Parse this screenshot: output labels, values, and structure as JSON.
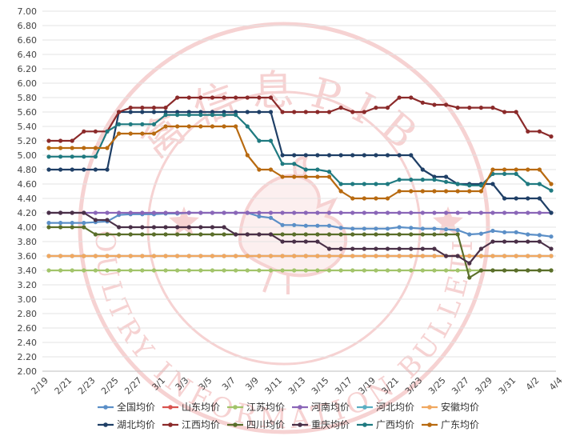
{
  "chart_data": {
    "type": "line",
    "title": "",
    "xlabel": "",
    "ylabel": "",
    "ylim": [
      2.0,
      7.0
    ],
    "y_tick_step": 0.2,
    "grid": true,
    "legend_position": "bottom",
    "x_tick_labels": [
      "2/19",
      "2/21",
      "2/23",
      "2/25",
      "2/27",
      "3/1",
      "3/3",
      "3/5",
      "3/7",
      "3/9",
      "3/11",
      "3/13",
      "3/15",
      "3/17",
      "3/19",
      "3/21",
      "3/23",
      "3/25",
      "3/27",
      "3/29",
      "3/31",
      "4/2",
      "4/4"
    ],
    "x": [
      "2/19",
      "2/20",
      "2/21",
      "2/22",
      "2/23",
      "2/24",
      "2/25",
      "2/26",
      "2/27",
      "2/28",
      "3/1",
      "3/2",
      "3/3",
      "3/4",
      "3/5",
      "3/6",
      "3/7",
      "3/8",
      "3/9",
      "3/10",
      "3/11",
      "3/12",
      "3/13",
      "3/14",
      "3/15",
      "3/16",
      "3/17",
      "3/18",
      "3/19",
      "3/20",
      "3/21",
      "3/22",
      "3/23",
      "3/24",
      "3/25",
      "3/26",
      "3/27",
      "3/28",
      "3/29",
      "3/30",
      "3/31",
      "4/1",
      "4/2",
      "4/3"
    ],
    "series": [
      {
        "name": "全国均价",
        "color": "#5b8fc7",
        "values": [
          4.06,
          4.06,
          4.06,
          4.06,
          4.07,
          4.08,
          4.17,
          4.18,
          4.18,
          4.18,
          4.19,
          4.19,
          4.2,
          4.2,
          4.2,
          4.2,
          4.2,
          4.2,
          4.15,
          4.13,
          4.03,
          4.03,
          4.02,
          4.02,
          4.02,
          3.99,
          3.98,
          3.98,
          3.98,
          3.98,
          4.0,
          3.99,
          3.98,
          3.98,
          3.97,
          3.96,
          3.9,
          3.91,
          3.95,
          3.93,
          3.93,
          3.9,
          3.89,
          3.87
        ]
      },
      {
        "name": "山东均价",
        "color": "#d9534f",
        "values": [
          3.6,
          3.6,
          3.6,
          3.6,
          3.6,
          3.6,
          3.6,
          3.6,
          3.6,
          3.6,
          3.6,
          3.6,
          3.6,
          3.6,
          3.6,
          3.6,
          3.6,
          3.6,
          3.6,
          3.6,
          3.6,
          3.6,
          3.6,
          3.6,
          3.6,
          3.6,
          3.6,
          3.6,
          3.6,
          3.6,
          3.6,
          3.6,
          3.6,
          3.6,
          3.6,
          3.6,
          3.6,
          3.6,
          3.6,
          3.6,
          3.6,
          3.6,
          3.6,
          3.6
        ]
      },
      {
        "name": "江苏均价",
        "color": "#a2c46a",
        "values": [
          3.4,
          3.4,
          3.4,
          3.4,
          3.4,
          3.4,
          3.4,
          3.4,
          3.4,
          3.4,
          3.4,
          3.4,
          3.4,
          3.4,
          3.4,
          3.4,
          3.4,
          3.4,
          3.4,
          3.4,
          3.4,
          3.4,
          3.4,
          3.4,
          3.4,
          3.4,
          3.4,
          3.4,
          3.4,
          3.4,
          3.4,
          3.4,
          3.4,
          3.4,
          3.4,
          3.4,
          3.4,
          3.4,
          3.4,
          3.4,
          3.4,
          3.4,
          3.4,
          3.4
        ]
      },
      {
        "name": "河南均价",
        "color": "#8a66b8",
        "values": [
          4.2,
          4.2,
          4.2,
          4.2,
          4.2,
          4.2,
          4.2,
          4.2,
          4.2,
          4.2,
          4.2,
          4.2,
          4.2,
          4.2,
          4.2,
          4.2,
          4.2,
          4.2,
          4.2,
          4.2,
          4.2,
          4.2,
          4.2,
          4.2,
          4.2,
          4.2,
          4.2,
          4.2,
          4.2,
          4.2,
          4.2,
          4.2,
          4.2,
          4.2,
          4.2,
          4.2,
          4.2,
          4.2,
          4.2,
          4.2,
          4.2,
          4.2,
          4.2,
          4.2
        ]
      },
      {
        "name": "河北均价",
        "color": "#5aaec2",
        "values": [
          3.6,
          3.6,
          3.6,
          3.6,
          3.6,
          3.6,
          3.6,
          3.6,
          3.6,
          3.6,
          3.6,
          3.6,
          3.6,
          3.6,
          3.6,
          3.6,
          3.6,
          3.6,
          3.6,
          3.6,
          3.6,
          3.6,
          3.6,
          3.6,
          3.6,
          3.6,
          3.6,
          3.6,
          3.6,
          3.6,
          3.6,
          3.6,
          3.6,
          3.6,
          3.6,
          3.6,
          3.6,
          3.6,
          3.6,
          3.6,
          3.6,
          3.6,
          3.6,
          3.6
        ]
      },
      {
        "name": "安徽均价",
        "color": "#f0a860",
        "values": [
          3.6,
          3.6,
          3.6,
          3.6,
          3.6,
          3.6,
          3.6,
          3.6,
          3.6,
          3.6,
          3.6,
          3.6,
          3.6,
          3.6,
          3.6,
          3.6,
          3.6,
          3.6,
          3.6,
          3.6,
          3.6,
          3.6,
          3.6,
          3.6,
          3.6,
          3.6,
          3.6,
          3.6,
          3.6,
          3.6,
          3.6,
          3.6,
          3.6,
          3.6,
          3.6,
          3.6,
          3.6,
          3.6,
          3.6,
          3.6,
          3.6,
          3.6,
          3.6,
          3.6
        ]
      },
      {
        "name": "湖北均价",
        "color": "#1f3f66",
        "values": [
          4.8,
          4.8,
          4.8,
          4.8,
          4.8,
          4.8,
          5.6,
          5.6,
          5.6,
          5.6,
          5.6,
          5.6,
          5.6,
          5.6,
          5.6,
          5.6,
          5.6,
          5.6,
          5.6,
          5.6,
          5.0,
          5.0,
          5.0,
          5.0,
          5.0,
          5.0,
          5.0,
          5.0,
          5.0,
          5.0,
          5.0,
          5.0,
          4.8,
          4.7,
          4.7,
          4.6,
          4.6,
          4.6,
          4.6,
          4.4,
          4.4,
          4.4,
          4.4,
          4.2
        ]
      },
      {
        "name": "江西均价",
        "color": "#8b2a2a",
        "values": [
          5.2,
          5.2,
          5.2,
          5.33,
          5.33,
          5.33,
          5.6,
          5.66,
          5.66,
          5.66,
          5.66,
          5.8,
          5.8,
          5.8,
          5.8,
          5.8,
          5.8,
          5.8,
          5.8,
          5.8,
          5.6,
          5.6,
          5.6,
          5.6,
          5.6,
          5.66,
          5.6,
          5.6,
          5.66,
          5.66,
          5.8,
          5.8,
          5.73,
          5.7,
          5.7,
          5.66,
          5.66,
          5.66,
          5.66,
          5.6,
          5.6,
          5.33,
          5.33,
          5.26
        ]
      },
      {
        "name": "四川均价",
        "color": "#5a6e2a",
        "values": [
          4.0,
          4.0,
          4.0,
          4.0,
          3.9,
          3.9,
          3.9,
          3.9,
          3.9,
          3.9,
          3.9,
          3.9,
          3.9,
          3.9,
          3.9,
          3.9,
          3.9,
          3.9,
          3.9,
          3.9,
          3.9,
          3.9,
          3.9,
          3.9,
          3.9,
          3.9,
          3.9,
          3.9,
          3.9,
          3.9,
          3.9,
          3.9,
          3.9,
          3.9,
          3.9,
          3.9,
          3.3,
          3.4,
          3.4,
          3.4,
          3.4,
          3.4,
          3.4,
          3.4
        ]
      },
      {
        "name": "重庆均价",
        "color": "#4a3048",
        "values": [
          4.2,
          4.2,
          4.2,
          4.2,
          4.1,
          4.1,
          4.0,
          4.0,
          4.0,
          4.0,
          4.0,
          4.0,
          4.0,
          4.0,
          4.0,
          4.0,
          3.9,
          3.9,
          3.9,
          3.9,
          3.8,
          3.8,
          3.8,
          3.8,
          3.7,
          3.7,
          3.7,
          3.7,
          3.7,
          3.7,
          3.7,
          3.7,
          3.7,
          3.7,
          3.6,
          3.6,
          3.5,
          3.7,
          3.8,
          3.8,
          3.8,
          3.8,
          3.8,
          3.7
        ]
      },
      {
        "name": "广西均价",
        "color": "#1f7a80",
        "values": [
          4.98,
          4.98,
          4.98,
          4.98,
          4.98,
          5.33,
          5.43,
          5.43,
          5.43,
          5.43,
          5.56,
          5.56,
          5.56,
          5.56,
          5.56,
          5.56,
          5.56,
          5.4,
          5.2,
          5.2,
          4.88,
          4.88,
          4.8,
          4.8,
          4.77,
          4.6,
          4.6,
          4.6,
          4.6,
          4.6,
          4.66,
          4.66,
          4.66,
          4.66,
          4.63,
          4.6,
          4.58,
          4.58,
          4.74,
          4.74,
          4.74,
          4.6,
          4.6,
          4.51
        ]
      },
      {
        "name": "广东均价",
        "color": "#b86a10",
        "values": [
          5.1,
          5.1,
          5.1,
          5.1,
          5.1,
          5.1,
          5.3,
          5.3,
          5.3,
          5.3,
          5.4,
          5.4,
          5.4,
          5.4,
          5.4,
          5.4,
          5.4,
          5.0,
          4.8,
          4.8,
          4.7,
          4.7,
          4.7,
          4.7,
          4.7,
          4.5,
          4.4,
          4.4,
          4.4,
          4.4,
          4.5,
          4.5,
          4.5,
          4.5,
          4.5,
          4.5,
          4.5,
          4.5,
          4.8,
          4.8,
          4.8,
          4.8,
          4.8,
          4.6
        ]
      }
    ]
  },
  "watermark": {
    "top_text": "禽信息PIB",
    "bottom_text": "POULTRY INFORMATION BULLETIN",
    "color": "#e06060"
  }
}
